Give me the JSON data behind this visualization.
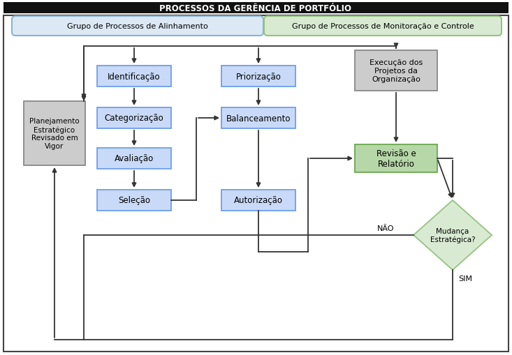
{
  "title": "PROCESSOS DA GERÊNCIA DE PORTFÓLIO",
  "title_bg": "#111111",
  "title_color": "#ffffff",
  "group1_label": "Grupo de Processos de Alinhamento",
  "group1_bg": "#dce9f5",
  "group1_border": "#8ab4d4",
  "group2_label": "Grupo de Processos de Monitoração e Controle",
  "group2_bg": "#d9ead3",
  "group2_border": "#93c47d",
  "box_blue_bg": "#c9daf8",
  "box_blue_border": "#6d9eeb",
  "box_gray_bg": "#cccccc",
  "box_gray_border": "#888888",
  "box_green_bg": "#b6d7a8",
  "box_green_border": "#6aa84f",
  "diamond_bg": "#d9ead3",
  "diamond_border": "#93c47d",
  "line_color": "#333333",
  "text_color": "#000000",
  "fig_bg": "#ffffff"
}
